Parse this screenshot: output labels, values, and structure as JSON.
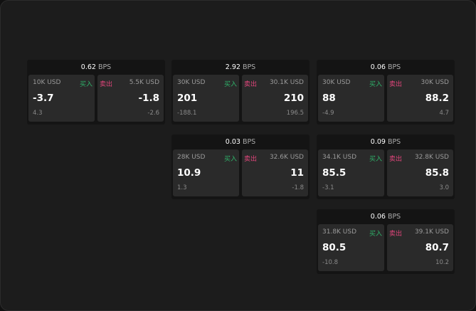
{
  "labels": {
    "buy": "买入",
    "sell": "卖出",
    "bps_unit": "BPS"
  },
  "colors": {
    "buy": "#2fb36a",
    "sell": "#e0457b"
  },
  "widgets": [
    {
      "bps": "0.62",
      "buy": {
        "size": "10K USD",
        "price": "-3.7",
        "change": "4.3"
      },
      "sell": {
        "size": "5.5K USD",
        "price": "-1.8",
        "change": "-2.6"
      }
    },
    {
      "bps": "2.92",
      "buy": {
        "size": "30K USD",
        "price": "201",
        "change": "-188.1"
      },
      "sell": {
        "size": "30.1K USD",
        "price": "210",
        "change": "196.5"
      }
    },
    {
      "bps": "0.06",
      "buy": {
        "size": "30K USD",
        "price": "88",
        "change": "-4.9"
      },
      "sell": {
        "size": "30K USD",
        "price": "88.2",
        "change": "4.7"
      }
    },
    {
      "bps": "0.03",
      "buy": {
        "size": "28K USD",
        "price": "10.9",
        "change": "1.3"
      },
      "sell": {
        "size": "32.6K USD",
        "price": "11",
        "change": "-1.8"
      }
    },
    {
      "bps": "0.09",
      "buy": {
        "size": "34.1K USD",
        "price": "85.5",
        "change": "-3.1"
      },
      "sell": {
        "size": "32.8K USD",
        "price": "85.8",
        "change": "3.0"
      }
    },
    {
      "bps": "0.06",
      "buy": {
        "size": "31.8K USD",
        "price": "80.5",
        "change": "-10.8"
      },
      "sell": {
        "size": "39.1K USD",
        "price": "80.7",
        "change": "10.2"
      }
    }
  ]
}
